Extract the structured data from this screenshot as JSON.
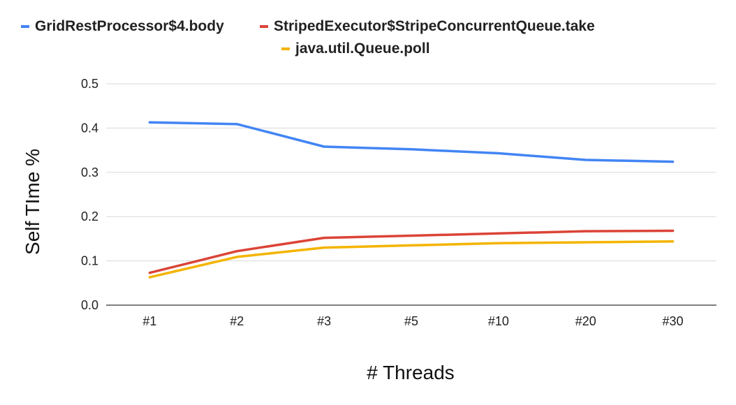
{
  "chart_data": {
    "type": "line",
    "title": "",
    "xlabel": "# Threads",
    "ylabel": "Self TIme %",
    "categories": [
      "#1",
      "#2",
      "#3",
      "#5",
      "#10",
      "#20",
      "#30"
    ],
    "ylim": [
      0,
      0.5
    ],
    "yticks": [
      "0.0",
      "0.1",
      "0.2",
      "0.3",
      "0.4",
      "0.5"
    ],
    "grid": true,
    "legend_position": "top",
    "series": [
      {
        "name": "GridRestProcessor$4.body",
        "color": "#4285f4",
        "values": [
          0.413,
          0.409,
          0.358,
          0.352,
          0.343,
          0.328,
          0.324
        ]
      },
      {
        "name": "StripedExecutor$StripeConcurrentQueue.take",
        "color": "#db4437",
        "values": [
          0.073,
          0.122,
          0.152,
          0.157,
          0.162,
          0.167,
          0.168
        ]
      },
      {
        "name": "java.util.Queue.poll",
        "color": "#f4b400",
        "values": [
          0.063,
          0.109,
          0.13,
          0.135,
          0.14,
          0.142,
          0.144
        ]
      }
    ]
  }
}
